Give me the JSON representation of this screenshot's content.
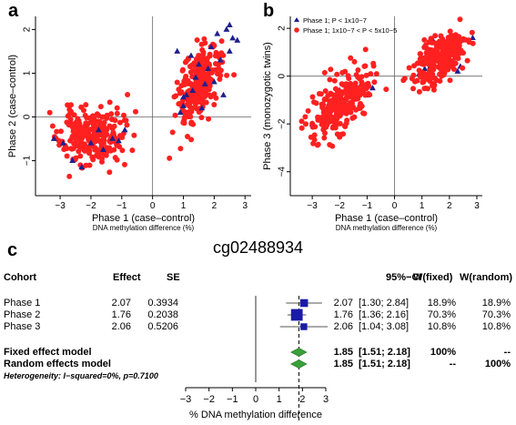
{
  "panels": {
    "a": "a",
    "b": "b",
    "c": "c"
  },
  "chart_data": [
    {
      "type": "scatter",
      "panel": "a",
      "xlabel": "Phase 1 (case–control)",
      "xlabel2": "DNA methylation difference (%)",
      "ylabel": "Phase 2 (case–control)",
      "xlim": [
        -3.8,
        3.2
      ],
      "ylim": [
        -1.8,
        2.3
      ],
      "xticks": [
        -3,
        -2,
        -1,
        0,
        1,
        2,
        3
      ],
      "yticks": [
        -1,
        0,
        1,
        2
      ],
      "grid": false,
      "reference_lines": {
        "x": 0,
        "y": 0
      },
      "series": [
        {
          "name": "Phase 1; 1x10−7 < P < 5x10−5",
          "marker": "circle",
          "color": "#ff2020",
          "clusters": [
            {
              "cx": -2.0,
              "cy": -0.45,
              "sx": 0.5,
              "sy": 0.32,
              "n": 260,
              "seed": 11
            },
            {
              "cx": 1.45,
              "cy": 0.7,
              "sx": 0.35,
              "sy": 0.5,
              "rho": 0.55,
              "n": 240,
              "seed": 23
            }
          ]
        },
        {
          "name": "Phase 1; P < 1x10−7",
          "marker": "triangle",
          "color": "#1f1f8c",
          "points": [
            [
              -3.2,
              -0.5
            ],
            [
              -2.9,
              -0.6
            ],
            [
              -2.6,
              -1.0
            ],
            [
              -2.3,
              -1.15
            ],
            [
              -2.0,
              -0.6
            ],
            [
              -1.75,
              -0.3
            ],
            [
              -1.6,
              -0.75
            ],
            [
              -1.3,
              -0.5
            ],
            [
              -1.1,
              -0.55
            ],
            [
              -0.9,
              -0.3
            ],
            [
              0.9,
              0.1
            ],
            [
              1.0,
              0.25
            ],
            [
              1.1,
              0.5
            ],
            [
              1.3,
              0.6
            ],
            [
              1.4,
              0.9
            ],
            [
              1.5,
              1.2
            ],
            [
              1.6,
              0.2
            ],
            [
              1.7,
              0.75
            ],
            [
              1.8,
              1.1
            ],
            [
              1.9,
              1.6
            ],
            [
              2.0,
              0.8
            ],
            [
              2.1,
              1.9
            ],
            [
              2.2,
              1.3
            ],
            [
              2.3,
              0.5
            ],
            [
              2.4,
              2.0
            ],
            [
              2.5,
              1.5
            ],
            [
              2.6,
              1.8
            ],
            [
              2.75,
              1.75
            ],
            [
              1.25,
              1.4
            ],
            [
              0.8,
              1.5
            ],
            [
              2.5,
              2.1
            ],
            [
              1.0,
              0.45
            ]
          ]
        }
      ]
    },
    {
      "type": "scatter",
      "panel": "b",
      "xlabel": "Phase 1 (case–control)",
      "xlabel2": "DNA methylation difference (%)",
      "ylabel": "Phase 3 (monozygotic twins)",
      "xlim": [
        -3.8,
        3.2
      ],
      "ylim": [
        -5.0,
        2.5
      ],
      "xticks": [
        -3,
        -2,
        -1,
        0,
        1,
        2,
        3
      ],
      "yticks": [
        -4,
        -2,
        0,
        2
      ],
      "grid": false,
      "reference_lines": {
        "x": 0,
        "y": 0
      },
      "legend": {
        "position": "top-left"
      },
      "series": [
        {
          "name": "Phase 1; P < 1x10−7",
          "marker": "triangle",
          "color": "#1f1f8c",
          "points": [
            [
              -3.0,
              -2.0
            ],
            [
              -2.7,
              -1.8
            ],
            [
              -2.5,
              -1.6
            ],
            [
              -2.2,
              -1.4
            ],
            [
              -2.0,
              -0.6
            ],
            [
              -1.8,
              -1.0
            ],
            [
              -1.5,
              -0.5
            ],
            [
              -1.2,
              -0.3
            ],
            [
              -1.0,
              -0.8
            ],
            [
              -0.8,
              -0.5
            ],
            [
              0.9,
              0.1
            ],
            [
              1.1,
              0.3
            ],
            [
              1.3,
              0.4
            ],
            [
              1.4,
              1.5
            ],
            [
              1.5,
              0.8
            ],
            [
              1.7,
              0.9
            ],
            [
              1.9,
              0.5
            ],
            [
              2.0,
              1.0
            ],
            [
              2.1,
              1.1
            ],
            [
              2.3,
              0.2
            ],
            [
              2.5,
              1.5
            ],
            [
              2.85,
              1.6
            ],
            [
              1.2,
              1.0
            ],
            [
              1.6,
              1.2
            ],
            [
              1.8,
              0.2
            ],
            [
              2.2,
              0.75
            ],
            [
              0.95,
              0.6
            ],
            [
              2.4,
              0.4
            ]
          ]
        },
        {
          "name": "Phase 1; 1x10−7 < P < 5x10−5",
          "marker": "circle",
          "color": "#ff2020",
          "clusters": [
            {
              "cx": -1.9,
              "cy": -1.1,
              "sx": 0.55,
              "sy": 0.7,
              "rho": 0.6,
              "n": 270,
              "seed": 37
            },
            {
              "cx": 1.55,
              "cy": 0.6,
              "sx": 0.45,
              "sy": 0.55,
              "rho": 0.55,
              "n": 270,
              "seed": 51
            }
          ]
        }
      ]
    },
    {
      "type": "forest",
      "panel": "c",
      "title": "cg02488934",
      "headers": {
        "cohort": "Cohort",
        "effect": "Effect",
        "se": "SE",
        "ci": "95%−CI",
        "wfixed": "W(fixed)",
        "wrandom": "W(random)"
      },
      "xlabel": "% DNA methylation difference",
      "xlim": [
        -3,
        3
      ],
      "xticks": [
        -3,
        -2,
        -1,
        0,
        1,
        2,
        3
      ],
      "studies": [
        {
          "cohort": "Phase 1",
          "effect": 2.07,
          "effect_text": "2.07",
          "se_text": "0.3934",
          "lo": 1.3,
          "hi": 2.84,
          "est_text": "2.07",
          "ci_text": "[1.30; 2.84]",
          "wfixed": "18.9%",
          "wrandom": "18.9%",
          "weight": 18.9
        },
        {
          "cohort": "Phase 2",
          "effect": 1.76,
          "effect_text": "1.76",
          "se_text": "0.2038",
          "lo": 1.36,
          "hi": 2.16,
          "est_text": "1.76",
          "ci_text": "[1.36; 2.16]",
          "wfixed": "70.3%",
          "wrandom": "70.3%",
          "weight": 70.3
        },
        {
          "cohort": "Phase 3",
          "effect": 2.06,
          "effect_text": "2.06",
          "se_text": "0.5206",
          "lo": 1.04,
          "hi": 3.08,
          "est_text": "2.06",
          "ci_text": "[1.04; 3.08]",
          "wfixed": "10.8%",
          "wrandom": "10.8%",
          "weight": 10.8
        }
      ],
      "summaries": [
        {
          "label": "Fixed effect model",
          "est": 1.85,
          "lo": 1.51,
          "hi": 2.18,
          "est_text": "1.85",
          "ci_text": "[1.51; 2.18]",
          "wfixed": "100%",
          "wrandom": "--"
        },
        {
          "label": "Random effects model",
          "est": 1.85,
          "lo": 1.51,
          "hi": 2.18,
          "est_text": "1.85",
          "ci_text": "[1.51; 2.18]",
          "wfixed": "--",
          "wrandom": "100%"
        }
      ],
      "heterogeneity": "Heterogeneity: I−squared=0%, p=0.7100",
      "pooled_line": 1.85,
      "colors": {
        "study_box": "#1a1aa8",
        "diamond": "#3aa13a",
        "ci_line": "#555555"
      }
    }
  ]
}
